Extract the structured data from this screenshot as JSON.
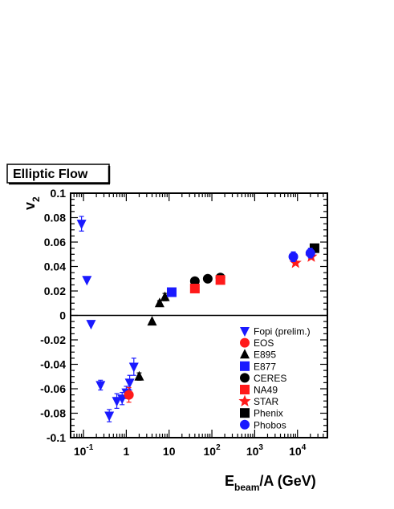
{
  "chart_data": {
    "type": "scatter",
    "title": "Elliptic Flow",
    "ylabel": "v",
    "ylabel_sub": "2",
    "xlabel_pre": "E",
    "xlabel_sub": "beam",
    "xlabel_post": "/A (GeV)",
    "xscale": "log",
    "xlim": [
      0.05,
      50000
    ],
    "ylim": [
      -0.1,
      0.1
    ],
    "grid": false,
    "legend_position": "lower-right",
    "x_ticks": [
      {
        "v": 0.1,
        "base": "10",
        "exp": "-1"
      },
      {
        "v": 1,
        "base": "1",
        "exp": ""
      },
      {
        "v": 10,
        "base": "10",
        "exp": ""
      },
      {
        "v": 100,
        "base": "10",
        "exp": "2"
      },
      {
        "v": 1000,
        "base": "10",
        "exp": "3"
      },
      {
        "v": 10000,
        "base": "10",
        "exp": "4"
      }
    ],
    "y_ticks": [
      {
        "v": 0.1,
        "label": "0.1"
      },
      {
        "v": 0.08,
        "label": "0.08"
      },
      {
        "v": 0.06,
        "label": "0.06"
      },
      {
        "v": 0.04,
        "label": "0.04"
      },
      {
        "v": 0.02,
        "label": "0.02"
      },
      {
        "v": 0,
        "label": "0"
      },
      {
        "v": -0.02,
        "label": "-0.02"
      },
      {
        "v": -0.04,
        "label": "-0.04"
      },
      {
        "v": -0.06,
        "label": "-0.06"
      },
      {
        "v": -0.08,
        "label": "-0.08"
      },
      {
        "v": -0.1,
        "label": "-0.1"
      }
    ],
    "series": [
      {
        "name": "Fopi (prelim.)",
        "marker": "triangle-down",
        "color": "#1a1aff",
        "points": [
          {
            "x": 0.09,
            "y": 0.075,
            "err": 0.006
          },
          {
            "x": 0.12,
            "y": 0.029,
            "err": 0
          },
          {
            "x": 0.15,
            "y": -0.007,
            "err": 0
          },
          {
            "x": 0.25,
            "y": -0.057,
            "err": 0.004
          },
          {
            "x": 0.4,
            "y": -0.082,
            "err": 0.005
          },
          {
            "x": 0.6,
            "y": -0.07,
            "err": 0.006
          },
          {
            "x": 0.8,
            "y": -0.068,
            "err": 0.005
          },
          {
            "x": 1.0,
            "y": -0.063,
            "err": 0.005
          },
          {
            "x": 1.2,
            "y": -0.055,
            "err": 0.006
          },
          {
            "x": 1.5,
            "y": -0.042,
            "err": 0.007
          }
        ]
      },
      {
        "name": "EOS",
        "marker": "circle",
        "color": "#ff1a1a",
        "points": [
          {
            "x": 1.15,
            "y": -0.065,
            "err": 0.006
          }
        ]
      },
      {
        "name": "E895",
        "marker": "triangle-up",
        "color": "#000000",
        "points": [
          {
            "x": 2.0,
            "y": -0.05,
            "err": 0.003
          },
          {
            "x": 4.0,
            "y": -0.005,
            "err": 0
          },
          {
            "x": 6.0,
            "y": 0.01,
            "err": 0.002
          },
          {
            "x": 8.0,
            "y": 0.015,
            "err": 0.003
          }
        ]
      },
      {
        "name": "E877",
        "marker": "square",
        "color": "#1a1aff",
        "points": [
          {
            "x": 11.5,
            "y": 0.019,
            "err": 0
          }
        ]
      },
      {
        "name": "CERES",
        "marker": "circle",
        "color": "#000000",
        "points": [
          {
            "x": 40,
            "y": 0.028,
            "err": 0
          },
          {
            "x": 80,
            "y": 0.03,
            "err": 0
          },
          {
            "x": 158,
            "y": 0.031,
            "err": 0
          }
        ]
      },
      {
        "name": "NA49",
        "marker": "square",
        "color": "#ff1a1a",
        "points": [
          {
            "x": 40,
            "y": 0.022,
            "err": 0
          },
          {
            "x": 158,
            "y": 0.029,
            "err": 0
          }
        ]
      },
      {
        "name": "STAR",
        "marker": "star",
        "color": "#ff1a1a",
        "points": [
          {
            "x": 9000,
            "y": 0.043,
            "err": 0
          },
          {
            "x": 21000,
            "y": 0.048,
            "err": 0
          }
        ]
      },
      {
        "name": "Phenix",
        "marker": "square",
        "color": "#000000",
        "points": [
          {
            "x": 25000,
            "y": 0.055,
            "err": 0.003
          }
        ]
      },
      {
        "name": "Phobos",
        "marker": "circle",
        "color": "#1a1aff",
        "points": [
          {
            "x": 8000,
            "y": 0.048,
            "err": 0.004
          },
          {
            "x": 20000,
            "y": 0.051,
            "err": 0.004
          }
        ]
      }
    ]
  }
}
